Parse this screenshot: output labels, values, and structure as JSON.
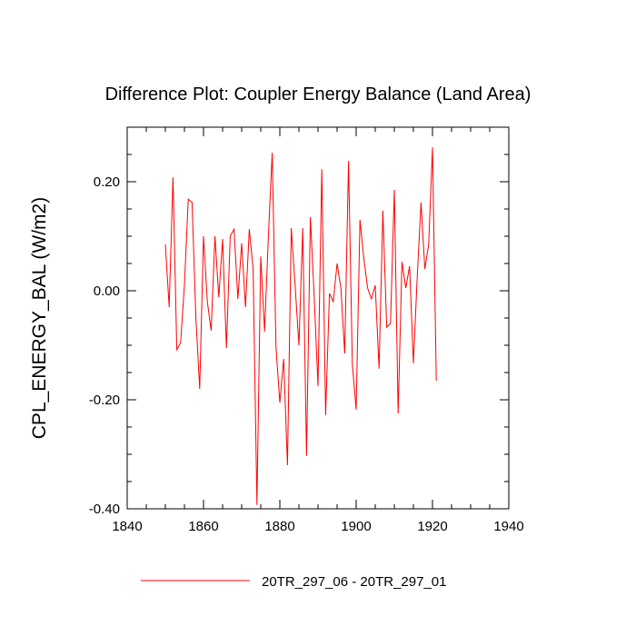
{
  "chart_data": {
    "type": "line",
    "title": "Difference Plot: Coupler Energy Balance (Land Area)",
    "xlabel": "",
    "ylabel": "CPL_ENERGY_BAL  (W/m2)",
    "xlim": [
      1840,
      1940
    ],
    "ylim": [
      -0.4,
      0.3
    ],
    "xticks": [
      1840,
      1860,
      1880,
      1900,
      1920,
      1940
    ],
    "xtick_labels": [
      "1840",
      "1860",
      "1880",
      "1900",
      "1920",
      "1940"
    ],
    "yticks": [
      -0.4,
      -0.2,
      0.0,
      0.2
    ],
    "ytick_labels": [
      "-0.40",
      "-0.20",
      "0.00",
      "0.20"
    ],
    "legend_position": "bottom-center",
    "series": [
      {
        "name": "20TR_297_06 - 20TR_297_01",
        "color": "#ff0000",
        "x": [
          1850,
          1851,
          1852,
          1853,
          1854,
          1855,
          1856,
          1857,
          1858,
          1859,
          1860,
          1861,
          1862,
          1863,
          1864,
          1865,
          1866,
          1867,
          1868,
          1869,
          1870,
          1871,
          1872,
          1873,
          1874,
          1875,
          1876,
          1877,
          1878,
          1879,
          1880,
          1881,
          1882,
          1883,
          1884,
          1885,
          1886,
          1887,
          1888,
          1889,
          1890,
          1891,
          1892,
          1893,
          1894,
          1895,
          1896,
          1897,
          1898,
          1899,
          1900,
          1901,
          1902,
          1903,
          1904,
          1905,
          1906,
          1907,
          1908,
          1909,
          1910,
          1911,
          1912,
          1913,
          1914,
          1915,
          1916,
          1917,
          1918,
          1919,
          1920,
          1921
        ],
        "values": [
          0.085,
          -0.03,
          0.208,
          -0.108,
          -0.095,
          0.01,
          0.168,
          0.162,
          -0.05,
          -0.18,
          0.1,
          -0.02,
          -0.073,
          0.1,
          -0.012,
          0.095,
          -0.105,
          0.1,
          0.113,
          -0.015,
          0.087,
          -0.03,
          0.113,
          0.04,
          -0.393,
          0.063,
          -0.075,
          0.1,
          0.253,
          -0.105,
          -0.205,
          -0.125,
          -0.32,
          0.115,
          0.01,
          -0.1,
          0.115,
          -0.303,
          0.135,
          -0.01,
          -0.175,
          0.223,
          -0.228,
          -0.005,
          -0.02,
          0.05,
          0.005,
          -0.115,
          0.238,
          -0.135,
          -0.218,
          0.13,
          0.06,
          0.005,
          -0.015,
          0.01,
          -0.143,
          0.147,
          -0.067,
          -0.06,
          0.185,
          -0.225,
          0.053,
          0.005,
          0.045,
          -0.133,
          0.025,
          0.162,
          0.04,
          0.085,
          0.263,
          -0.165
        ]
      }
    ]
  }
}
